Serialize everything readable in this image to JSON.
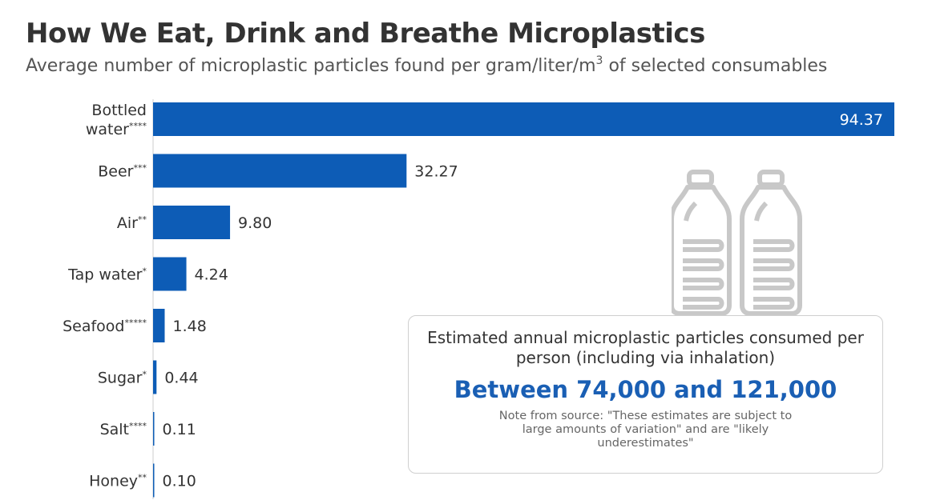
{
  "header": {
    "title": "How We Eat, Drink and Breathe Microplastics",
    "subtitle_pre": "Average number of microplastic particles found per gram/liter/m",
    "subtitle_sup": "3",
    "subtitle_post": " of selected consumables"
  },
  "callout": {
    "heading": "Estimated annual microplastic particles consumed per person (including via inhalation)",
    "figure": "Between 74,000 and 121,000",
    "note": "Note from source: \"These estimates are subject to large amounts of variation\" and are \"likely underestimates\""
  },
  "icons": [
    "water-bottle-icon",
    "water-bottle-icon"
  ],
  "colors": {
    "bar": "#0d5cb6",
    "axis": "#cccccc",
    "icon": "#c8c8c8",
    "highlight": "#1a5fb4"
  },
  "chart_data": {
    "type": "bar",
    "orientation": "horizontal",
    "categories": [
      {
        "name": "Bottled water",
        "lines": [
          "Bottled",
          "water"
        ],
        "stars": "****"
      },
      {
        "name": "Beer",
        "lines": [
          "Beer"
        ],
        "stars": "***"
      },
      {
        "name": "Air",
        "lines": [
          "Air"
        ],
        "stars": "**"
      },
      {
        "name": "Tap water",
        "lines": [
          "Tap water"
        ],
        "stars": "*"
      },
      {
        "name": "Seafood",
        "lines": [
          "Seafood"
        ],
        "stars": "*****"
      },
      {
        "name": "Sugar",
        "lines": [
          "Sugar"
        ],
        "stars": "*"
      },
      {
        "name": "Salt",
        "lines": [
          "Salt"
        ],
        "stars": "****"
      },
      {
        "name": "Honey",
        "lines": [
          "Honey"
        ],
        "stars": "**"
      }
    ],
    "values": [
      94.37,
      32.27,
      9.8,
      4.24,
      1.48,
      0.44,
      0.11,
      0.1
    ],
    "value_labels": [
      "94.37",
      "32.27",
      "9.80",
      "4.24",
      "1.48",
      "0.44",
      "0.11",
      "0.10"
    ],
    "xlim": [
      0,
      94.37
    ],
    "grid": false
  }
}
